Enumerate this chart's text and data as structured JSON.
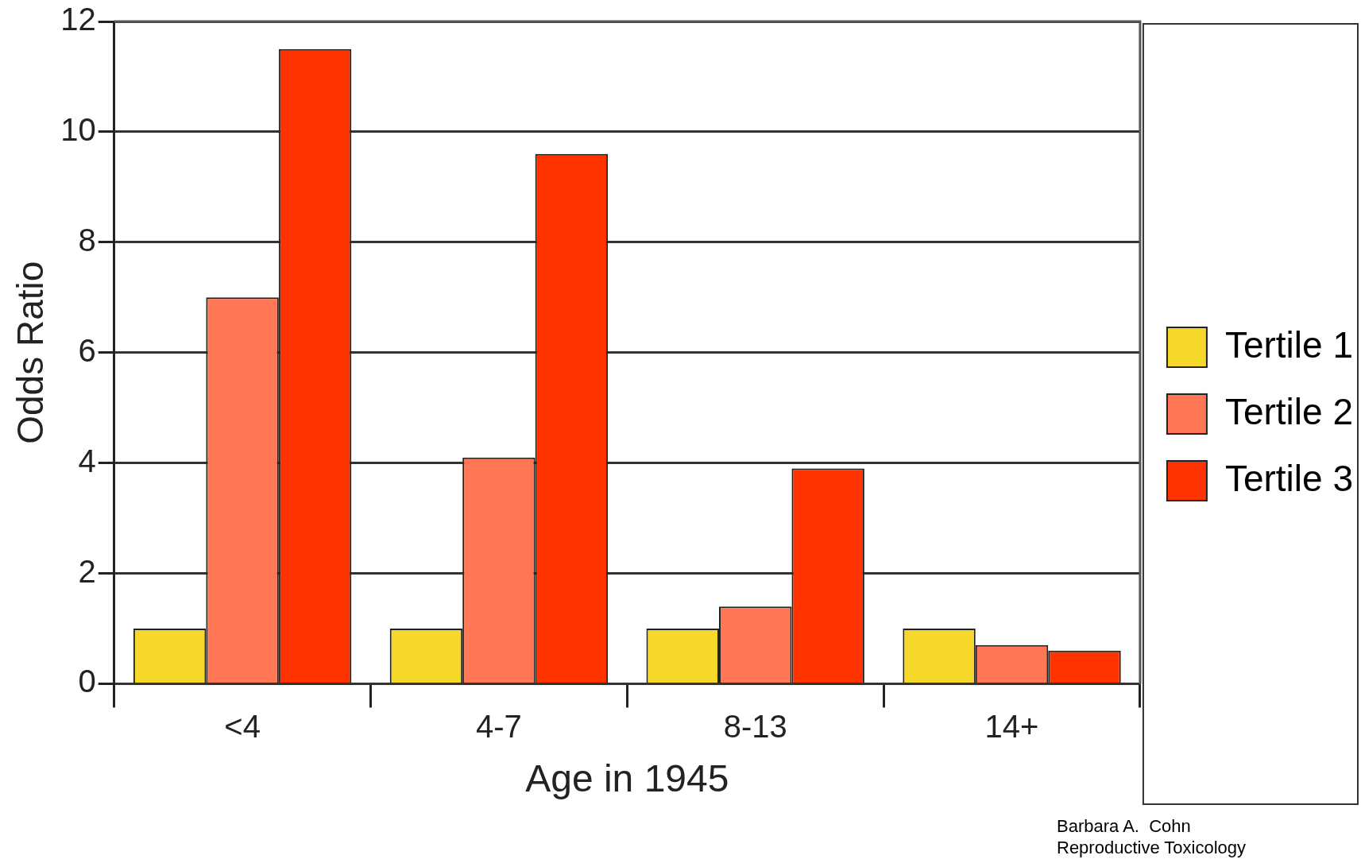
{
  "chart_data": {
    "type": "bar",
    "xlabel": "Age in 1945",
    "ylabel": "Odds Ratio",
    "categories": [
      "<4",
      "4-7",
      "8-13",
      "14+"
    ],
    "series": [
      {
        "name": "Tertile 1",
        "color": "#f5d829",
        "values": [
          1.0,
          1.0,
          1.0,
          1.0
        ]
      },
      {
        "name": "Tertile 2",
        "color": "#ff7755",
        "values": [
          7.0,
          4.1,
          1.4,
          0.7
        ]
      },
      {
        "name": "Tertile 3",
        "color": "#ff3300",
        "values": [
          11.5,
          9.6,
          3.9,
          0.6
        ]
      }
    ],
    "ylim": [
      0,
      12
    ],
    "yticks": [
      0,
      2,
      4,
      6,
      8,
      10,
      12
    ],
    "grid": "y",
    "legend": "right",
    "annotations": [
      "Barbara A.  Cohn",
      "Reproductive Toxicology"
    ]
  }
}
